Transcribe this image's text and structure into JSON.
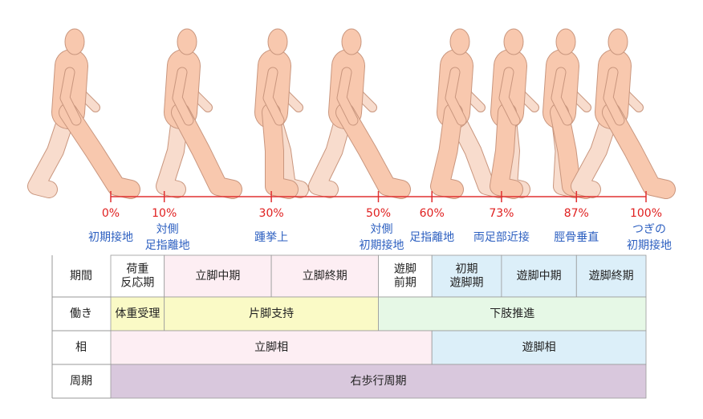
{
  "timeline": {
    "ticks": [
      {
        "value": 0,
        "label": "0%"
      },
      {
        "value": 10,
        "label": "10%"
      },
      {
        "value": 30,
        "label": "30%"
      },
      {
        "value": 50,
        "label": "50%"
      },
      {
        "value": 60,
        "label": "60%"
      },
      {
        "value": 73,
        "label": "73%"
      },
      {
        "value": 87,
        "label": "87%"
      },
      {
        "value": 100,
        "label": "100%"
      }
    ],
    "events": [
      [
        "初期接地"
      ],
      [
        "対側",
        "足指離地"
      ],
      [
        "踵挙上"
      ],
      [
        "対側",
        "初期接地"
      ],
      [
        "足指離地"
      ],
      [
        "両足部近接"
      ],
      [
        "脛骨垂直"
      ],
      [
        "つぎの",
        "初期接地"
      ]
    ]
  },
  "table": {
    "rows": [
      {
        "header": "期間",
        "cells": [
          [
            "荷重",
            "反応期"
          ],
          [
            "立脚中期"
          ],
          [
            "立脚終期"
          ],
          [
            "遊脚",
            "前期"
          ],
          [
            "初期",
            "遊脚期"
          ],
          [
            "遊脚中期"
          ],
          [
            "遊脚終期"
          ]
        ]
      },
      {
        "header": "働き",
        "cells": [
          [
            "体重受理"
          ],
          [
            "片脚支持"
          ],
          [
            "下肢推進"
          ]
        ]
      },
      {
        "header": "相",
        "cells": [
          [
            "立脚相"
          ],
          [
            "遊脚相"
          ]
        ]
      },
      {
        "header": "周期",
        "cells": [
          [
            "右歩行周期"
          ]
        ]
      }
    ]
  }
}
